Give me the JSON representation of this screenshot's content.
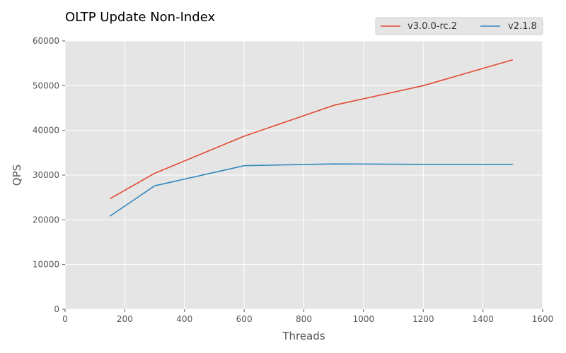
{
  "chart_data": {
    "type": "line",
    "title": "OLTP Update Non-Index",
    "xlabel": "Threads",
    "ylabel": "QPS",
    "xlim": [
      0,
      1600
    ],
    "ylim": [
      0,
      60000
    ],
    "xticks": [
      0,
      200,
      400,
      600,
      800,
      1000,
      1200,
      1400,
      1600
    ],
    "yticks": [
      0,
      10000,
      20000,
      30000,
      40000,
      50000,
      60000
    ],
    "x": [
      150,
      300,
      600,
      900,
      1200,
      1500
    ],
    "series": [
      {
        "name": "v3.0.0-rc.2",
        "color": "#e24a33",
        "values": [
          24700,
          30400,
          38700,
          45600,
          50000,
          55800
        ]
      },
      {
        "name": "v2.1.8",
        "color": "#348abd",
        "values": [
          20800,
          27600,
          32100,
          32500,
          32400,
          32400
        ]
      }
    ],
    "grid": true,
    "legend_position": "top-right"
  },
  "colors": {
    "plot_background": "#e5e5e5",
    "grid": "#ffffff"
  }
}
